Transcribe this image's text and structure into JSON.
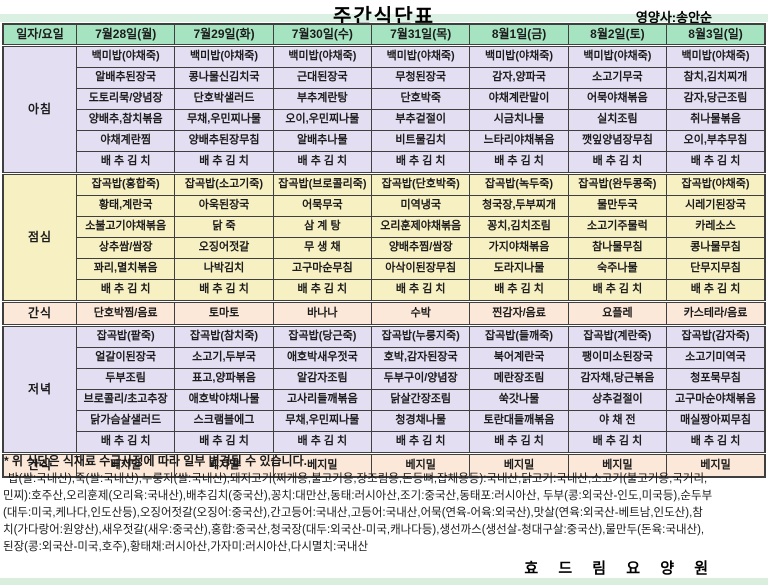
{
  "title": "주간식단표",
  "nutritionist": "영양사:송안순",
  "colors": {
    "header_green": "#a6e3c1",
    "breakfast_bg": "#e4def2",
    "lunch_bg": "#f7f0c2",
    "snack_bg": "#fce8d9",
    "dinner_bg": "#e4def2",
    "border": "#3f3f3f"
  },
  "table": {
    "corner_label": "일자/요일",
    "day_headers": [
      "7월28일(월)",
      "7월29일(화)",
      "7월30일(수)",
      "7월31일(목)",
      "8월1일(금)",
      "8월2일(토)",
      "8월3일(일)"
    ],
    "sections": [
      {
        "id": "breakfast",
        "label": "아침",
        "bg": "lav",
        "days": [
          [
            "백미밥(야채죽)",
            "알배추된장국",
            "도토리묵/양념장",
            "양배추,참치볶음",
            "야채계란찜",
            "배 추 김 치"
          ],
          [
            "백미밥(야채죽)",
            "콩나물신김치국",
            "단호박샐러드",
            "무채,우민찌나물",
            "양배추된장무침",
            "배 추 김 치"
          ],
          [
            "백미밥(야채죽)",
            "근대된장국",
            "부추계란탕",
            "오이,우민찌나물",
            "알배추나물",
            "배 추 김 치"
          ],
          [
            "백미밥(야채죽)",
            "무청된장국",
            "단호박죽",
            "부추겉절이",
            "비트물김치",
            "배 추 김 치"
          ],
          [
            "백미밥(야채죽)",
            "감자,양파국",
            "야채계란말이",
            "시금치나물",
            "느타리야채볶음",
            "배 추 김 치"
          ],
          [
            "백미밥(야채죽)",
            "소고기무국",
            "어묵야채볶음",
            "실치조림",
            "깻잎양념장무침",
            "배 추 김 치"
          ],
          [
            "백미밥(야채죽)",
            "참치,김치찌개",
            "감자,당근조림",
            "취나물볶음",
            "오이,부추무침",
            "배 추 김 치"
          ]
        ]
      },
      {
        "id": "lunch",
        "label": "점심",
        "bg": "yel",
        "days": [
          [
            "잡곡밥(홍합죽)",
            "황태,계란국",
            "소불고기야채볶음",
            "상추쌈/쌈장",
            "꽈리,멸치볶음",
            "배 추 김 치"
          ],
          [
            "잡곡밥(소고기죽)",
            "아욱된장국",
            "닭 죽",
            "오징어젓갈",
            "나박김치",
            "배 추 김 치"
          ],
          [
            "잡곡밥(브로콜리죽)",
            "어묵무국",
            "삼 계 탕",
            "무 생 채",
            "고구마순무침",
            "배 추 김 치"
          ],
          [
            "잡곡밥(단호박죽)",
            "미역냉국",
            "오리훈제야채볶음",
            "양배추찜/쌈장",
            "아삭이된장무침",
            "배 추 김 치"
          ],
          [
            "잡곡밥(녹두죽)",
            "청국장,두부찌개",
            "꽁치,김치조림",
            "가지야채볶음",
            "도라지나물",
            "배 추 김 치"
          ],
          [
            "잡곡밥(완두콩죽)",
            "물만두국",
            "소고기주물럭",
            "참나물무침",
            "숙주나물",
            "배 추 김 치"
          ],
          [
            "잡곡밥(야채죽)",
            "시레기된장국",
            "카레소스",
            "콩나물무침",
            "단무지무침",
            "배 추 김 치"
          ]
        ]
      },
      {
        "id": "snack-afternoon",
        "label": "간식",
        "bg": "pea",
        "snack": true,
        "days": [
          [
            "단호박찜/음료"
          ],
          [
            "토마토"
          ],
          [
            "바나나"
          ],
          [
            "수박"
          ],
          [
            "찐감자/음료"
          ],
          [
            "요플레"
          ],
          [
            "카스테라/음료"
          ]
        ]
      },
      {
        "id": "dinner",
        "label": "저녁",
        "bg": "lav",
        "days": [
          [
            "잡곡밥(팥죽)",
            "얼갈이된장국",
            "두부조림",
            "브로콜리/초고추장",
            "닭가슴살샐러드",
            "배 추 김 치"
          ],
          [
            "잡곡밥(참치죽)",
            "소고기,두부국",
            "표고,양파볶음",
            "애호박야채나물",
            "스크램블에그",
            "배 추 김 치"
          ],
          [
            "잡곡밥(당근죽)",
            "애호박새우젓국",
            "알감자조림",
            "고사리들깨볶음",
            "무채,우민찌나물",
            "배 추 김 치"
          ],
          [
            "잡곡밥(누룽지죽)",
            "호박,감자된장국",
            "두부구이/양념장",
            "닭살간장조림",
            "청경채나물",
            "배 추 김 치"
          ],
          [
            "잡곡밥(들깨죽)",
            "북어계란국",
            "메란장조림",
            "쑥갓나물",
            "토란대들깨볶음",
            "배 추 김 치"
          ],
          [
            "잡곡밥(계란죽)",
            "팽이미소된장국",
            "감자채,당근볶음",
            "상추겉절이",
            "야 채 전",
            "배 추 김 치"
          ],
          [
            "잡곡밥(감자죽)",
            "소고기미역국",
            "청포묵무침",
            "고구마순야채볶음",
            "매실짱아찌무침",
            "배 추 김 치"
          ]
        ]
      },
      {
        "id": "snack-evening",
        "label": "간식",
        "bg": "pea",
        "snack": true,
        "days": [
          [
            "베지밀"
          ],
          [
            "베지밀"
          ],
          [
            "베지밀"
          ],
          [
            "베지밀"
          ],
          [
            "베지밀"
          ],
          [
            "베지밀"
          ],
          [
            "베지밀"
          ]
        ]
      }
    ]
  },
  "note": "* 위 식단은 식재료 수급사정에 따라 일부 변경될 수 있습니다.",
  "origin_lines": [
    "밥(쌀:국내산),죽(쌀:국내산),누룽지(쌀:국내산),돼지고기(찌개용,불고기용,장조림용,돈등뼈,잡채용등):국내산,닭고기:국내산,소고기(불고기용,국거리,",
    "민찌):호주산,오리훈제(오리육:국내산),배추김치(중국산),꽁치:대만산,동태:러시아산,조기:중국산,동태포:러시아산, 두부(콩:외국산-인도,미국등),순두부",
    "(대두:미국,케나다,인도산등),오징어젓갈(오징어:중국산),간고등어:국내산,고등어:국내산,어묵(연육-어육:외국산),맛살(연육:외국산-베트남,인도산),참",
    "치(가다랑어:원양산),새우젓갈(새우:중국산),홍합:중국산,청국장(대두:외국산-미국,캐나다등),생선까스(생선살-청대구살:중국산),물만두(돈육:국내산),",
    "된장(콩:외국산-미국,호주),황태채:러시아산,가자미:러시아산,다시멸치:국내산"
  ],
  "facility": "효 드 림 요 양 원"
}
